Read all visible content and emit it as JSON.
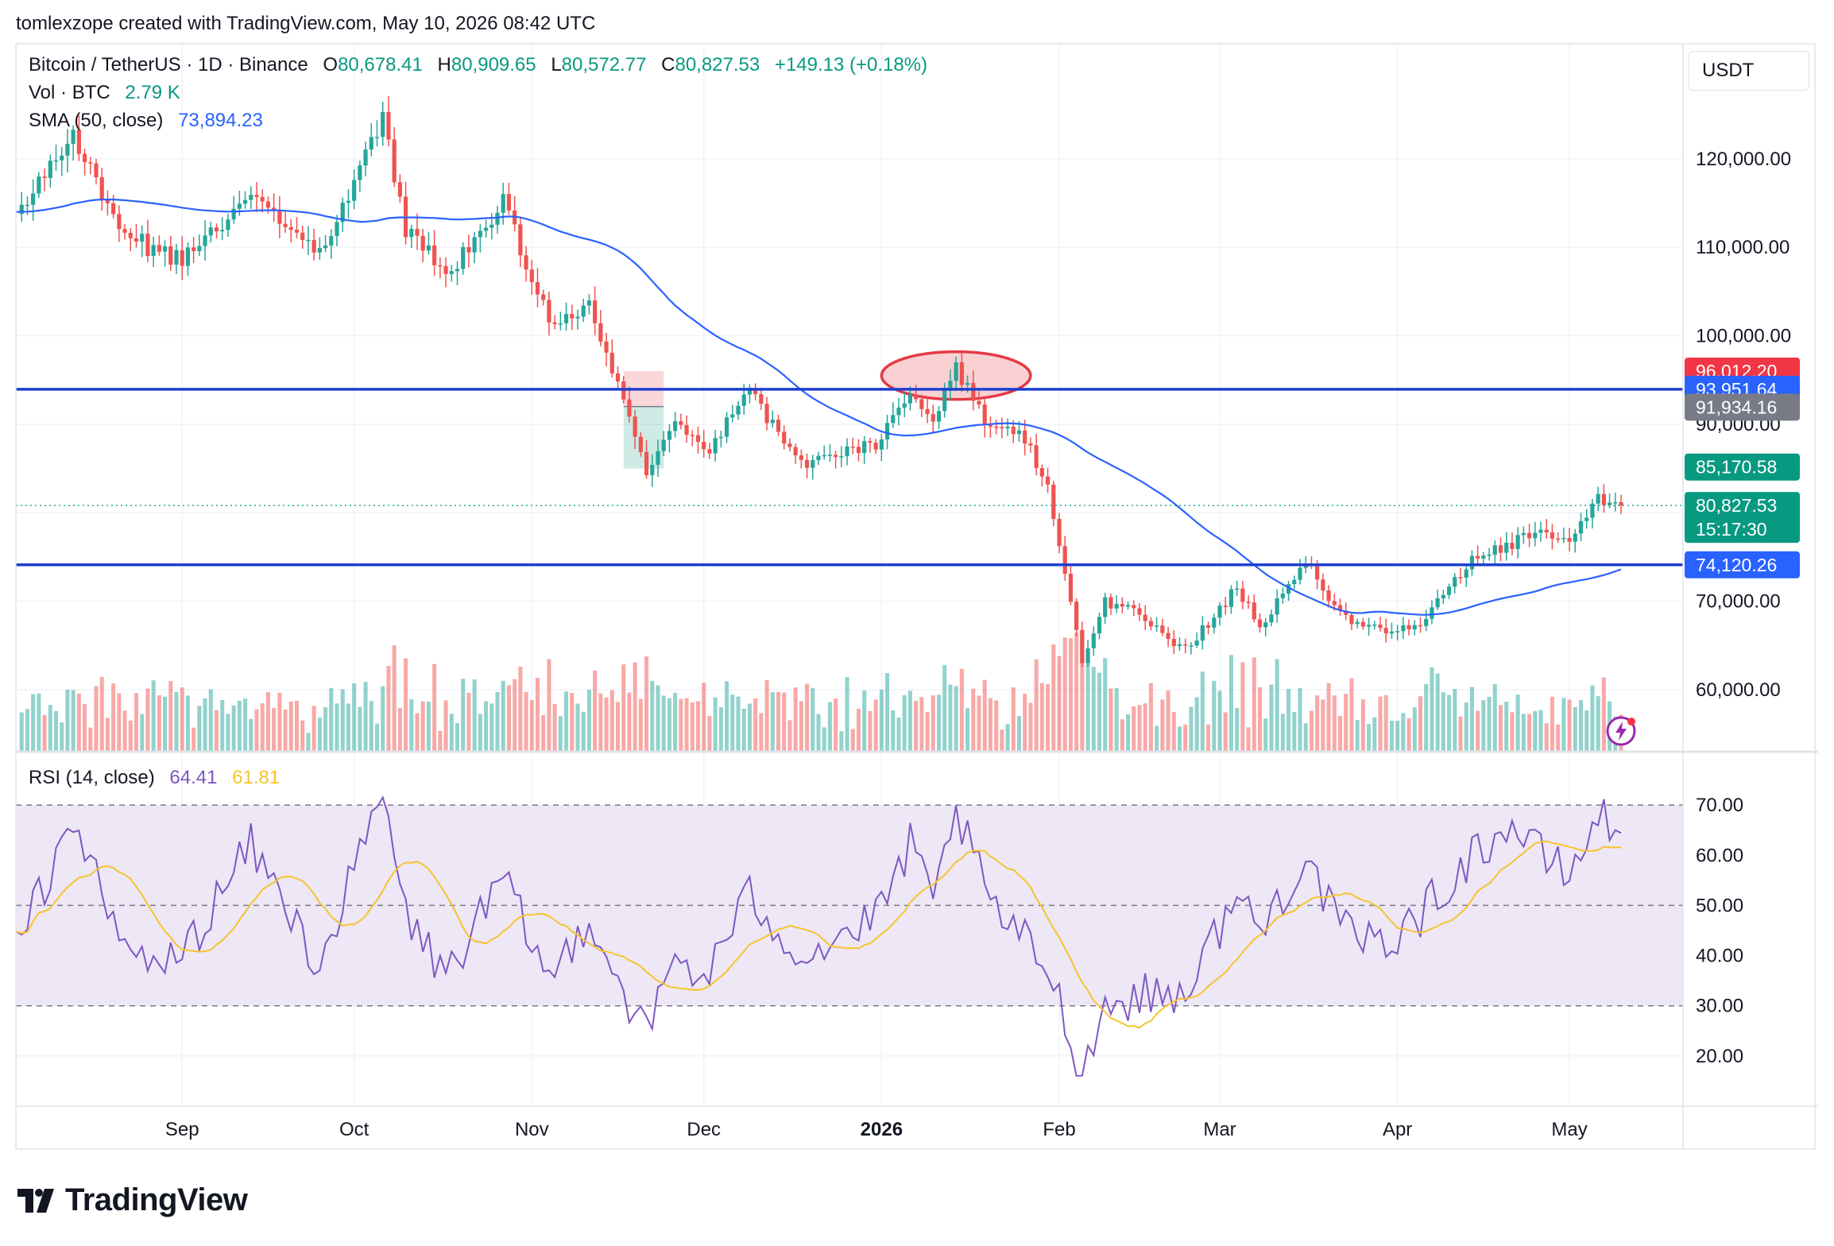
{
  "header": {
    "credit": "tomlexzope created with TradingView.com, May 10, 2026 08:42 UTC",
    "symbol": "Bitcoin / TetherUS · 1D · Binance",
    "o_label": "O",
    "o_value": "80,678.41",
    "h_label": "H",
    "h_value": "80,909.65",
    "l_label": "L",
    "l_value": "80,572.77",
    "c_label": "C",
    "c_value": "80,827.53",
    "change": "+149.13 (+0.18%)",
    "vol_label": "Vol · BTC",
    "vol_value": "2.79 K",
    "sma_label": "SMA (50, close)",
    "sma_value": "73,894.23",
    "rsi_label": "RSI (14, close)",
    "rsi_value": "64.41",
    "rsi_ma_value": "61.81",
    "currency": "USDT"
  },
  "price_axis": {
    "ticks": [
      {
        "value": 120000,
        "label": "120,000.00"
      },
      {
        "value": 110000,
        "label": "110,000.00"
      },
      {
        "value": 100000,
        "label": "100,000.00"
      },
      {
        "value": 90000,
        "label": "90,000.00"
      },
      {
        "value": 70000,
        "label": "70,000.00"
      },
      {
        "value": 60000,
        "label": "60,000.00"
      }
    ],
    "badges": [
      {
        "value": 96012.2,
        "label": "96,012.20",
        "color": "#f23645"
      },
      {
        "value": 93951.64,
        "label": "93,951.64",
        "color": "#2962ff"
      },
      {
        "value": 91934.16,
        "label": "91,934.16",
        "color": "#787b86"
      },
      {
        "value": 85170.58,
        "label": "85,170.58",
        "color": "#089981"
      },
      {
        "value": 80827.53,
        "label": "80,827.53",
        "sublabel": "15:17:30",
        "color": "#089981"
      },
      {
        "value": 74120.26,
        "label": "74,120.26",
        "color": "#2962ff"
      }
    ]
  },
  "rsi_axis": {
    "ticks": [
      {
        "value": 70,
        "label": "70.00"
      },
      {
        "value": 60,
        "label": "60.00"
      },
      {
        "value": 50,
        "label": "50.00"
      },
      {
        "value": 40,
        "label": "40.00"
      },
      {
        "value": 30,
        "label": "30.00"
      },
      {
        "value": 20,
        "label": "20.00"
      }
    ]
  },
  "time_axis": {
    "labels": [
      {
        "label": "Sep",
        "bold": false
      },
      {
        "label": "Oct",
        "bold": false
      },
      {
        "label": "Nov",
        "bold": false
      },
      {
        "label": "Dec",
        "bold": false
      },
      {
        "label": "2026",
        "bold": true
      },
      {
        "label": "Feb",
        "bold": false
      },
      {
        "label": "Mar",
        "bold": false
      },
      {
        "label": "Apr",
        "bold": false
      },
      {
        "label": "May",
        "bold": false
      }
    ]
  },
  "chart_data": {
    "type": "candlestick",
    "symbol": "BTCUSDT",
    "interval": "1D",
    "x_start": "2025-08-03",
    "x_end": "2026-05-10",
    "price_range": [
      53000,
      133000
    ],
    "sma_period": 50,
    "horizontal_lines": [
      93951.64,
      74120.26
    ],
    "last_price": 80827.53,
    "anchors": [
      [
        "2025-08-03",
        114000
      ],
      [
        "2025-08-13",
        123000
      ],
      [
        "2025-08-20",
        113500
      ],
      [
        "2025-08-26",
        110000
      ],
      [
        "2025-09-01",
        108500
      ],
      [
        "2025-09-13",
        115800
      ],
      [
        "2025-09-25",
        109000
      ],
      [
        "2025-10-06",
        124600
      ],
      [
        "2025-10-10",
        112000
      ],
      [
        "2025-10-16",
        108000
      ],
      [
        "2025-10-17",
        106500
      ],
      [
        "2025-10-27",
        115000
      ],
      [
        "2025-11-04",
        101500
      ],
      [
        "2025-11-11",
        103500
      ],
      [
        "2025-11-17",
        92500
      ],
      [
        "2025-11-21",
        84500
      ],
      [
        "2025-11-26",
        90500
      ],
      [
        "2025-12-01",
        86500
      ],
      [
        "2025-12-09",
        93500
      ],
      [
        "2025-12-18",
        85500
      ],
      [
        "2025-12-31",
        87800
      ],
      [
        "2026-01-06",
        93500
      ],
      [
        "2026-01-10",
        90500
      ],
      [
        "2026-01-14",
        96500
      ],
      [
        "2026-01-20",
        89000
      ],
      [
        "2026-01-25",
        89500
      ],
      [
        "2026-01-30",
        83000
      ],
      [
        "2026-02-05",
        63500
      ],
      [
        "2026-02-09",
        70000
      ],
      [
        "2026-02-15",
        68500
      ],
      [
        "2026-02-23",
        64500
      ],
      [
        "2026-03-04",
        71500
      ],
      [
        "2026-03-08",
        67000
      ],
      [
        "2026-03-16",
        74500
      ],
      [
        "2026-03-22",
        68500
      ],
      [
        "2026-03-29",
        66500
      ],
      [
        "2026-04-05",
        67500
      ],
      [
        "2026-04-14",
        74500
      ],
      [
        "2026-04-21",
        76500
      ],
      [
        "2026-04-26",
        78000
      ],
      [
        "2026-05-01",
        76500
      ],
      [
        "2026-05-06",
        81500
      ],
      [
        "2026-05-10",
        80827
      ]
    ],
    "rsi_range": [
      10,
      80
    ],
    "rsi_levels": [
      70,
      50,
      30
    ],
    "rsi_anchors": [
      [
        "2025-08-03",
        41
      ],
      [
        "2025-08-13",
        68
      ],
      [
        "2025-08-20",
        45
      ],
      [
        "2025-08-26",
        38
      ],
      [
        "2025-09-01",
        40
      ],
      [
        "2025-09-13",
        62
      ],
      [
        "2025-09-25",
        38
      ],
      [
        "2025-10-06",
        72
      ],
      [
        "2025-10-10",
        48
      ],
      [
        "2025-10-17",
        36
      ],
      [
        "2025-10-27",
        55
      ],
      [
        "2025-11-04",
        35
      ],
      [
        "2025-11-11",
        48
      ],
      [
        "2025-11-17",
        33
      ],
      [
        "2025-11-21",
        24
      ],
      [
        "2025-11-26",
        40
      ],
      [
        "2025-12-01",
        35
      ],
      [
        "2025-12-09",
        52
      ],
      [
        "2025-12-18",
        40
      ],
      [
        "2025-12-31",
        47
      ],
      [
        "2026-01-06",
        62
      ],
      [
        "2026-01-10",
        50
      ],
      [
        "2026-01-14",
        69
      ],
      [
        "2026-01-20",
        50
      ],
      [
        "2026-01-30",
        38
      ],
      [
        "2026-02-05",
        17
      ],
      [
        "2026-02-09",
        30
      ],
      [
        "2026-02-15",
        32
      ],
      [
        "2026-02-23",
        33
      ],
      [
        "2026-03-04",
        52
      ],
      [
        "2026-03-08",
        45
      ],
      [
        "2026-03-16",
        60
      ],
      [
        "2026-03-22",
        45
      ],
      [
        "2026-03-29",
        42
      ],
      [
        "2026-04-05",
        48
      ],
      [
        "2026-04-14",
        60
      ],
      [
        "2026-04-21",
        66
      ],
      [
        "2026-04-26",
        60
      ],
      [
        "2026-05-01",
        56
      ],
      [
        "2026-05-06",
        68
      ],
      [
        "2026-05-10",
        64.41
      ]
    ],
    "rsi_ma_last": 61.81
  },
  "colors": {
    "up": "#26a69a",
    "down": "#ef5350",
    "sma": "#2962ff",
    "hline": "#1e3fd0",
    "rsi": "#7e57c2",
    "rsi_ma": "#f7c42b",
    "rsi_band": "#ede7f6",
    "ellipse_stroke": "#e53945",
    "ellipse_fill": "#f8c6c8"
  }
}
